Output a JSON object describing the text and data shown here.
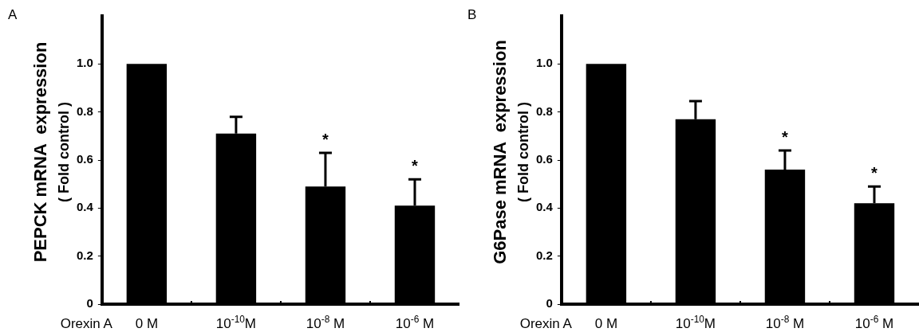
{
  "chart_data": [
    {
      "type": "bar",
      "annotations": [
        "A",
        {
          "text": "*",
          "x": "10$^{-8}$ M",
          "y": 0.63
        },
        {
          "text": "*",
          "x": "10$^{-6}$ M",
          "y": 0.52
        }
      ],
      "xlabel": "Orexin A",
      "ylabel": "PEPCK mRNA  expression\n( Fold control )",
      "categories": [
        "0 M",
        "10$^{-10}$M",
        "10$^{-8}$ M",
        "10$^{-6}$ M"
      ],
      "values": [
        1.0,
        0.71,
        0.49,
        0.41
      ],
      "color": "#000000",
      "errors": [
        null,
        [
          0.71,
          0.78
        ],
        [
          0.49,
          0.63
        ],
        [
          0.41,
          0.52
        ]
      ],
      "ylim": [
        0,
        1.2
      ],
      "yticks": [
        0,
        0.2,
        0.4,
        0.6,
        0.8,
        {
          "value": 1,
          "label": "1.0"
        }
      ],
      "grid": false,
      "legend": false
    },
    {
      "type": "bar",
      "annotations": [
        "B",
        {
          "text": "*",
          "x": "10$^{-8}$ M",
          "y": 0.64
        },
        {
          "text": "*",
          "x": "10$^{-6}$ M",
          "y": 0.49
        }
      ],
      "xlabel": "Orexin A",
      "ylabel": "G6Pase mRNA  expression\n( Fold control )",
      "categories": [
        "0 M",
        "10$^{-10}$M",
        "10$^{-8}$ M",
        "10$^{-6}$ M"
      ],
      "values": [
        1.0,
        0.77,
        0.56,
        0.42
      ],
      "color": "#000000",
      "errors": [
        null,
        [
          0.77,
          0.845
        ],
        [
          0.56,
          0.64
        ],
        [
          0.42,
          0.49
        ]
      ],
      "ylim": [
        0,
        1.2
      ],
      "yticks": [
        0,
        0.2,
        0.4,
        0.6,
        0.8,
        {
          "value": 1,
          "label": "1.0"
        }
      ],
      "grid": false,
      "legend": false
    }
  ]
}
